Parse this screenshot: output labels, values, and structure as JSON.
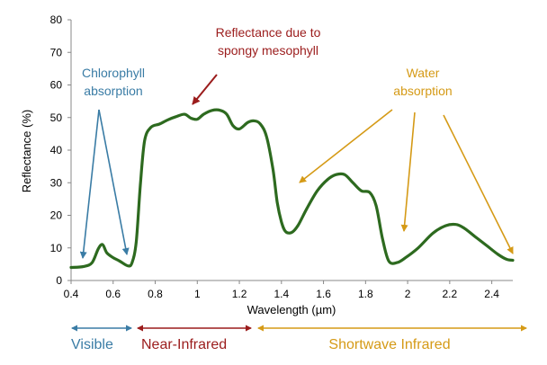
{
  "chart_data": {
    "type": "line",
    "xlabel": "Wavelength (µm)",
    "ylabel": "Reflectance (%)",
    "xlim": [
      0.4,
      2.5
    ],
    "ylim": [
      0,
      80
    ],
    "x_ticks": [
      "0.4",
      "0.6",
      "0.8",
      "1",
      "1.2",
      "1.4",
      "1.6",
      "1.8",
      "2",
      "2.2",
      "2.4"
    ],
    "y_ticks": [
      "0",
      "10",
      "20",
      "30",
      "40",
      "50",
      "60",
      "70",
      "80"
    ],
    "grid": false,
    "series": [
      {
        "color": "#2d6a1f",
        "points": [
          [
            0.4,
            4.0
          ],
          [
            0.46,
            4.3
          ],
          [
            0.5,
            5.5
          ],
          [
            0.53,
            9.8
          ],
          [
            0.55,
            11.0
          ],
          [
            0.57,
            8.5
          ],
          [
            0.6,
            7.0
          ],
          [
            0.63,
            6.0
          ],
          [
            0.67,
            4.5
          ],
          [
            0.69,
            5.5
          ],
          [
            0.71,
            12.0
          ],
          [
            0.73,
            30.0
          ],
          [
            0.75,
            43.0
          ],
          [
            0.78,
            47.0
          ],
          [
            0.82,
            48.0
          ],
          [
            0.86,
            49.3
          ],
          [
            0.9,
            50.3
          ],
          [
            0.94,
            51.0
          ],
          [
            0.97,
            49.8
          ],
          [
            1.0,
            49.5
          ],
          [
            1.03,
            51.0
          ],
          [
            1.07,
            52.2
          ],
          [
            1.11,
            52.2
          ],
          [
            1.14,
            51.0
          ],
          [
            1.17,
            47.5
          ],
          [
            1.2,
            46.5
          ],
          [
            1.24,
            48.5
          ],
          [
            1.27,
            49.0
          ],
          [
            1.3,
            48.0
          ],
          [
            1.33,
            44.0
          ],
          [
            1.36,
            34.0
          ],
          [
            1.38,
            24.0
          ],
          [
            1.4,
            18.0
          ],
          [
            1.42,
            15.0
          ],
          [
            1.45,
            14.8
          ],
          [
            1.48,
            17.0
          ],
          [
            1.52,
            22.0
          ],
          [
            1.57,
            27.5
          ],
          [
            1.62,
            31.0
          ],
          [
            1.66,
            32.5
          ],
          [
            1.7,
            32.5
          ],
          [
            1.74,
            30.0
          ],
          [
            1.78,
            27.5
          ],
          [
            1.82,
            27.0
          ],
          [
            1.85,
            23.0
          ],
          [
            1.88,
            13.0
          ],
          [
            1.91,
            6.0
          ],
          [
            1.95,
            5.5
          ],
          [
            1.99,
            7.0
          ],
          [
            2.05,
            10.0
          ],
          [
            2.12,
            14.5
          ],
          [
            2.18,
            16.8
          ],
          [
            2.23,
            17.2
          ],
          [
            2.27,
            16.0
          ],
          [
            2.32,
            13.5
          ],
          [
            2.38,
            10.5
          ],
          [
            2.43,
            8.0
          ],
          [
            2.47,
            6.5
          ],
          [
            2.5,
            6.2
          ]
        ]
      }
    ],
    "annotations": [
      {
        "id": "chlorophyll",
        "lines": [
          "Chlorophyll",
          "absorption"
        ],
        "color": "#3a7ca5"
      },
      {
        "id": "mesophyll",
        "lines": [
          "Reflectance due to",
          "spongy mesophyll"
        ],
        "color": "#9b1c1c"
      },
      {
        "id": "water",
        "lines": [
          "Water",
          "absorption"
        ],
        "color": "#d59a16"
      }
    ],
    "regions": [
      {
        "label": "Visible",
        "color": "#3a7ca5"
      },
      {
        "label": "Near-Infrared",
        "color": "#9b1c1c"
      },
      {
        "label": "Shortwave Infrared",
        "color": "#d59a16"
      }
    ]
  }
}
